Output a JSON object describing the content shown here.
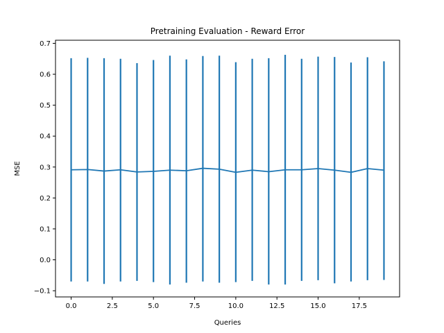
{
  "chart_data": {
    "type": "line",
    "title": "Pretraining Evaluation - Reward Error",
    "xlabel": "Queries",
    "ylabel": "MSE",
    "xlim": [
      -0.95,
      19.95
    ],
    "ylim": [
      -0.12,
      0.71
    ],
    "xticks": [
      0,
      2.5,
      5,
      7.5,
      10,
      12.5,
      15,
      17.5
    ],
    "xtick_labels": [
      "0.0",
      "2.5",
      "5.0",
      "7.5",
      "10.0",
      "12.5",
      "15.0",
      "17.5"
    ],
    "yticks": [
      -0.1,
      0.0,
      0.1,
      0.2,
      0.3,
      0.4,
      0.5,
      0.6,
      0.7
    ],
    "ytick_labels": [
      "−0.1",
      "0.0",
      "0.1",
      "0.2",
      "0.3",
      "0.4",
      "0.5",
      "0.6",
      "0.7"
    ],
    "grid": false,
    "color": "#1f77b4",
    "series": [
      {
        "x": [
          0,
          1,
          2,
          3,
          4,
          5,
          6,
          7,
          8,
          9,
          10,
          11,
          12,
          13,
          14,
          15,
          16,
          17,
          18,
          19
        ],
        "y": [
          0.291,
          0.292,
          0.287,
          0.291,
          0.284,
          0.286,
          0.29,
          0.288,
          0.296,
          0.293,
          0.283,
          0.29,
          0.285,
          0.291,
          0.291,
          0.295,
          0.29,
          0.283,
          0.295,
          0.29
        ],
        "err_low": [
          -0.07,
          -0.07,
          -0.078,
          -0.07,
          -0.068,
          -0.072,
          -0.08,
          -0.074,
          -0.07,
          -0.074,
          -0.072,
          -0.068,
          -0.08,
          -0.08,
          -0.068,
          -0.066,
          -0.076,
          -0.07,
          -0.066,
          -0.065
        ],
        "err_high": [
          0.652,
          0.653,
          0.652,
          0.65,
          0.636,
          0.646,
          0.66,
          0.648,
          0.659,
          0.66,
          0.639,
          0.65,
          0.652,
          0.663,
          0.65,
          0.657,
          0.656,
          0.638,
          0.655,
          0.642
        ]
      }
    ]
  }
}
